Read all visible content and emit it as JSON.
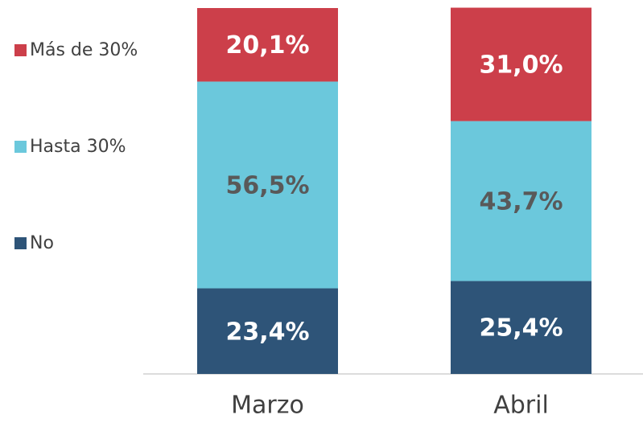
{
  "chart_data": {
    "type": "stacked_bar",
    "categories": [
      "Marzo",
      "Abril"
    ],
    "ylim": [
      0,
      100
    ],
    "series": [
      {
        "name": "No",
        "color": "#2e5478",
        "label_color": "#ffffff",
        "values": [
          23.4,
          25.4
        ],
        "value_labels": [
          "23,4%",
          "25,4%"
        ]
      },
      {
        "name": "Hasta 30%",
        "color": "#6bc8dc",
        "label_color": "#595959",
        "values": [
          56.5,
          43.7
        ],
        "value_labels": [
          "56,5%",
          "43,7%"
        ]
      },
      {
        "name": "Más de 30%",
        "color": "#cc3f4a",
        "label_color": "#ffffff",
        "values": [
          20.1,
          31.0
        ],
        "value_labels": [
          "20,1%",
          "31,0%"
        ]
      }
    ],
    "legend": "left"
  }
}
